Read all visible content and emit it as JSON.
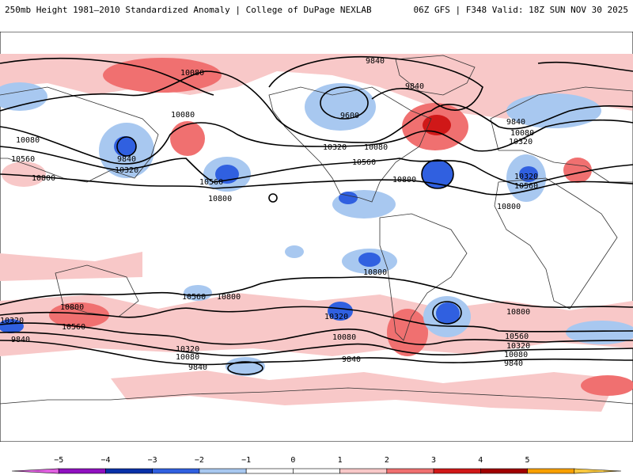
{
  "header": {
    "title": "250mb Height 1981–2010 Standardized Anomaly | College of DuPage NEXLAB",
    "run_info": "06Z GFS | F348 Valid: 18Z SUN NOV 30 2025"
  },
  "contour_labels": [
    "9840",
    "10080",
    "10080",
    "10080",
    "10560",
    "10800",
    "9840",
    "10320",
    "10560",
    "10800",
    "9600",
    "9840",
    "10320",
    "10080",
    "10560",
    "10800",
    "9840",
    "10080",
    "10320",
    "10320",
    "10560",
    "10800",
    "10800",
    "10800",
    "10560",
    "10800",
    "10320",
    "9840",
    "10320",
    "10080",
    "9840",
    "10560",
    "10320",
    "10080",
    "9840",
    "10800",
    "10560",
    "10320",
    "10080",
    "9840"
  ],
  "colorbar": {
    "ticks": [
      "−5",
      "−4",
      "−3",
      "−2",
      "−1",
      "0",
      "1",
      "2",
      "3",
      "4",
      "5"
    ],
    "colors": [
      "#e060e0",
      "#9010c0",
      "#0830a8",
      "#3060e0",
      "#a8c8f0",
      "#ffffff",
      "#ffffff",
      "#f8c8c8",
      "#f07070",
      "#d01818",
      "#a00000",
      "#f8a000",
      "#f8c840"
    ]
  }
}
